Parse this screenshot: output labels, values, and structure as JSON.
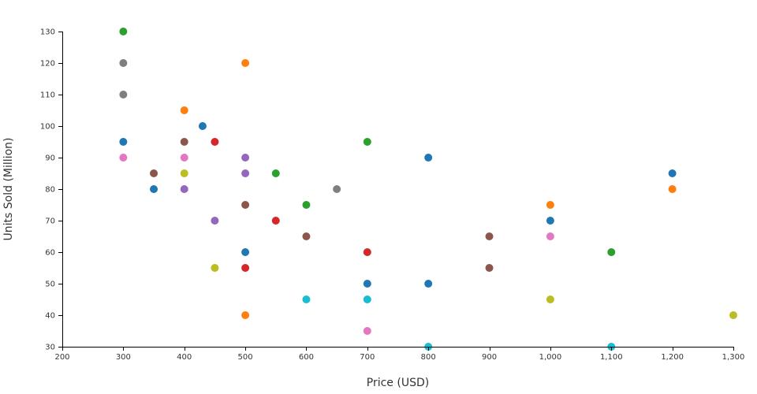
{
  "chart_data": {
    "type": "scatter",
    "title": "",
    "xlabel": "Price (USD)",
    "ylabel": "Units Sold (Million)",
    "xlim": [
      200,
      1300
    ],
    "ylim": [
      30,
      130
    ],
    "x_ticks": [
      200,
      300,
      400,
      500,
      600,
      700,
      800,
      900,
      1000,
      1100,
      1200,
      1300
    ],
    "x_tick_labels": [
      "200",
      "300",
      "400",
      "500",
      "600",
      "700",
      "800",
      "900",
      "1,000",
      "1,100",
      "1,200",
      "1,300"
    ],
    "y_ticks": [
      30,
      40,
      50,
      60,
      70,
      80,
      90,
      100,
      110,
      120,
      130
    ],
    "y_tick_labels": [
      "30",
      "40",
      "50",
      "60",
      "70",
      "80",
      "90",
      "100",
      "110",
      "120",
      "130"
    ],
    "grid": false,
    "legend": "none",
    "series": [
      {
        "color": "#1f77b4",
        "points": [
          [
            300,
            95
          ],
          [
            350,
            80
          ],
          [
            430,
            100
          ],
          [
            500,
            60
          ],
          [
            700,
            50
          ],
          [
            800,
            90
          ],
          [
            800,
            50
          ],
          [
            1000,
            70
          ],
          [
            1200,
            85
          ]
        ]
      },
      {
        "color": "#ff7f0e",
        "points": [
          [
            400,
            105
          ],
          [
            500,
            120
          ],
          [
            500,
            40
          ],
          [
            1000,
            75
          ],
          [
            1200,
            80
          ]
        ]
      },
      {
        "color": "#2ca02c",
        "points": [
          [
            300,
            130
          ],
          [
            550,
            85
          ],
          [
            600,
            75
          ],
          [
            700,
            95
          ],
          [
            1100,
            60
          ]
        ]
      },
      {
        "color": "#d62728",
        "points": [
          [
            450,
            95
          ],
          [
            500,
            55
          ],
          [
            550,
            70
          ],
          [
            700,
            60
          ]
        ]
      },
      {
        "color": "#9467bd",
        "points": [
          [
            400,
            80
          ],
          [
            450,
            70
          ],
          [
            500,
            90
          ],
          [
            500,
            85
          ]
        ]
      },
      {
        "color": "#8c564b",
        "points": [
          [
            350,
            85
          ],
          [
            400,
            95
          ],
          [
            500,
            75
          ],
          [
            600,
            65
          ],
          [
            900,
            65
          ],
          [
            900,
            55
          ]
        ]
      },
      {
        "color": "#e377c2",
        "points": [
          [
            300,
            90
          ],
          [
            400,
            90
          ],
          [
            700,
            35
          ],
          [
            1000,
            65
          ]
        ]
      },
      {
        "color": "#7f7f7f",
        "points": [
          [
            300,
            120
          ],
          [
            300,
            110
          ],
          [
            650,
            80
          ]
        ]
      },
      {
        "color": "#bcbd22",
        "points": [
          [
            400,
            85
          ],
          [
            450,
            55
          ],
          [
            1000,
            45
          ],
          [
            1300,
            40
          ]
        ]
      },
      {
        "color": "#17becf",
        "points": [
          [
            600,
            45
          ],
          [
            700,
            45
          ],
          [
            800,
            30
          ],
          [
            1100,
            30
          ]
        ]
      }
    ]
  }
}
